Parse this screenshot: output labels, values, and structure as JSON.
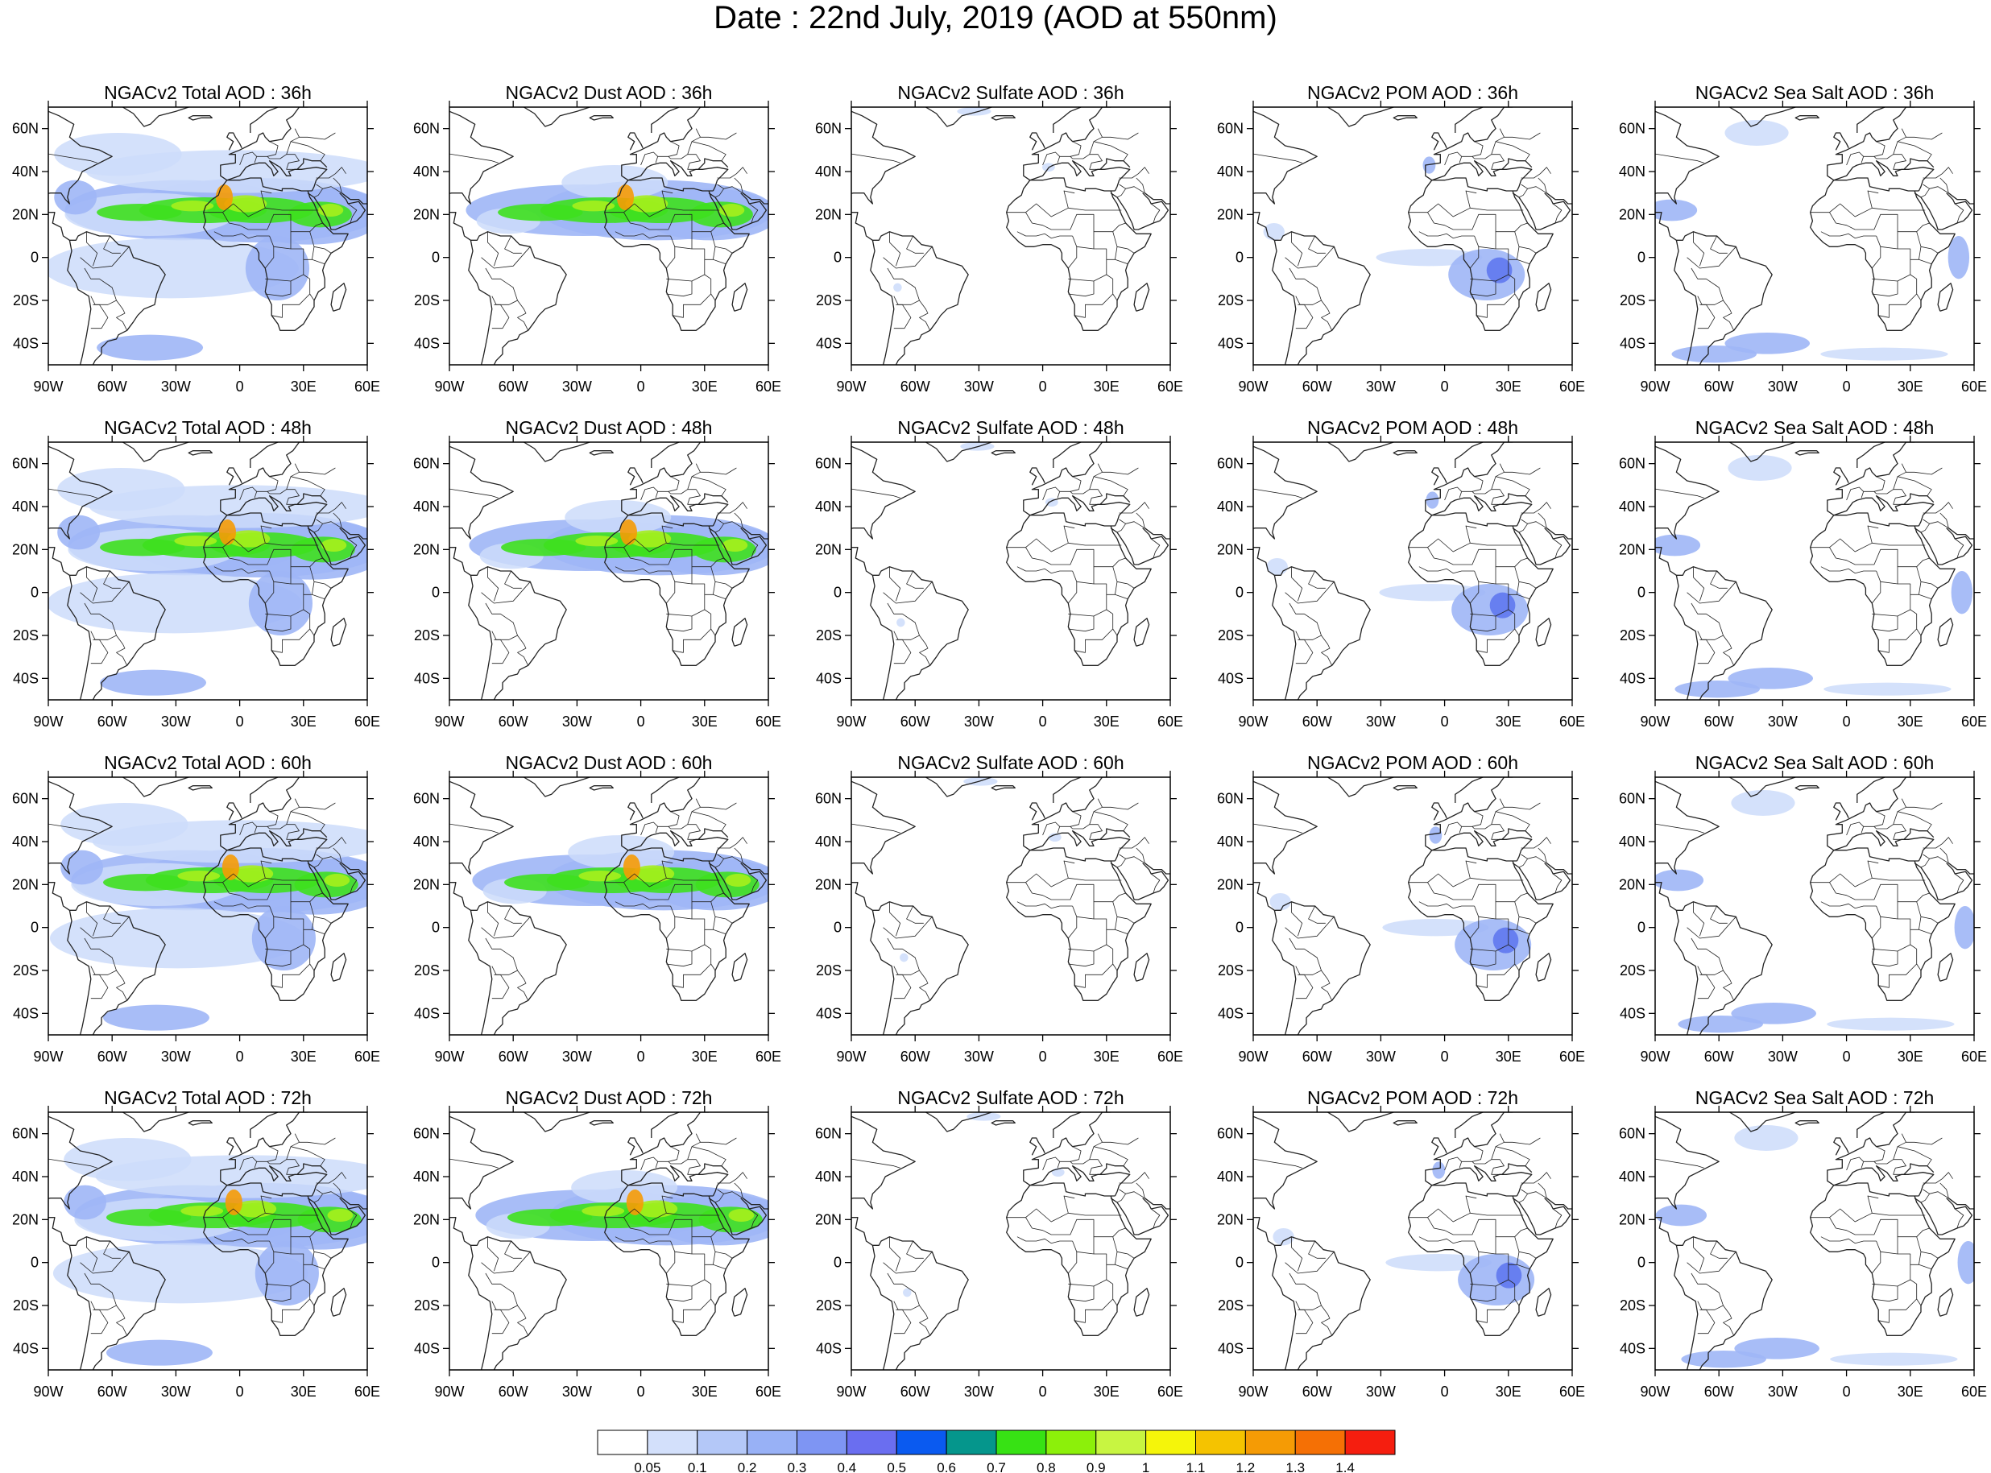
{
  "title": "Date : 22nd July, 2019 (AOD at 550nm)",
  "panels": [
    [
      "NGACv2 Total AOD : 36h",
      "NGACv2 Dust AOD : 36h",
      "NGACv2 Sulfate AOD : 36h",
      "NGACv2 POM AOD : 36h",
      "NGACv2 Sea Salt AOD : 36h"
    ],
    [
      "NGACv2 Total AOD : 48h",
      "NGACv2 Dust AOD : 48h",
      "NGACv2 Sulfate AOD : 48h",
      "NGACv2 POM AOD : 48h",
      "NGACv2 Sea Salt AOD : 48h"
    ],
    [
      "NGACv2 Total AOD : 60h",
      "NGACv2 Dust AOD : 60h",
      "NGACv2 Sulfate AOD : 60h",
      "NGACv2 POM AOD : 60h",
      "NGACv2 Sea Salt AOD : 60h"
    ],
    [
      "NGACv2 Total AOD : 72h",
      "NGACv2 Dust AOD : 72h",
      "NGACv2 Sulfate AOD : 72h",
      "NGACv2 POM AOD : 72h",
      "NGACv2 Sea Salt  AOD : 72h"
    ]
  ],
  "lon_ticks": [
    "90W",
    "60W",
    "30W",
    "0",
    "30E",
    "60E"
  ],
  "lat_ticks": [
    "60N",
    "40N",
    "20N",
    "0",
    "20S",
    "40S"
  ],
  "colorbar": {
    "labels": [
      "0.05",
      "0.1",
      "0.2",
      "0.3",
      "0.4",
      "0.5",
      "0.6",
      "0.7",
      "0.8",
      "0.9",
      "1",
      "1.1",
      "1.2",
      "1.3",
      "1.4"
    ],
    "colors": [
      "#ffffff",
      "#d3e0fb",
      "#b4c8f8",
      "#98b1f6",
      "#7e95f3",
      "#6a6ef0",
      "#0a5af0",
      "#05968c",
      "#37e214",
      "#8cf00a",
      "#c8f541",
      "#f5f50a",
      "#f5c300",
      "#f59b05",
      "#f57005",
      "#f51e0f"
    ]
  },
  "plume_color_scale": {
    "light": "#cddcfa",
    "mid": "#9fb6f6",
    "strong": "#5f78ee",
    "green": "#3ee01e",
    "lime": "#a6f01c",
    "orange": "#f59b05"
  }
}
